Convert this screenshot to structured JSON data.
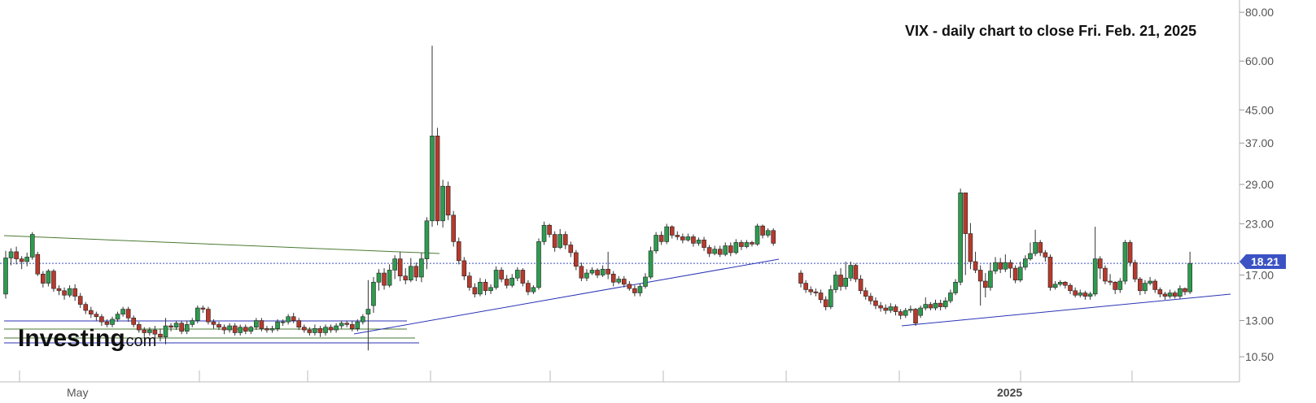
{
  "chart_data": {
    "type": "candlestick",
    "title": "VIX - daily chart to close Fri. Feb. 21, 2025",
    "yscale": "log",
    "ylim": [
      9.5,
      82
    ],
    "yticks": [
      "80.00",
      "60.00",
      "45.00",
      "37.00",
      "29.00",
      "23.00",
      "18.21",
      "17.00",
      "13.00",
      "10.50"
    ],
    "last_value": "18.21",
    "xlabels": [
      "May",
      "2025"
    ],
    "colors": {
      "up": "#2e9b4f",
      "down": "#b63a2c",
      "wick": "#333333",
      "last_line": "#3b52c4",
      "trend_blue": "#2b33b5",
      "trend_green": "#4a7a34",
      "grid": "#dddddd"
    },
    "candles": [
      [
        15.2,
        18.8,
        14.8,
        19.6
      ],
      [
        18.8,
        19.5,
        18.0,
        19.9
      ],
      [
        19.5,
        18.7,
        18.1,
        20.1
      ],
      [
        18.7,
        18.4,
        17.6,
        19.0
      ],
      [
        18.4,
        18.9,
        17.9,
        19.4
      ],
      [
        18.9,
        21.6,
        18.6,
        21.9
      ],
      [
        19.2,
        17.1,
        16.9,
        19.5
      ],
      [
        17.1,
        16.2,
        15.8,
        17.4
      ],
      [
        16.2,
        17.4,
        15.9,
        17.6
      ],
      [
        17.4,
        15.7,
        15.4,
        17.6
      ],
      [
        15.7,
        15.5,
        15.1,
        16.0
      ],
      [
        15.5,
        15.1,
        14.7,
        15.8
      ],
      [
        15.1,
        15.7,
        14.9,
        16.0
      ],
      [
        15.7,
        15.0,
        14.6,
        16.1
      ],
      [
        15.0,
        14.3,
        14.0,
        15.3
      ],
      [
        14.3,
        13.8,
        13.5,
        14.5
      ],
      [
        13.8,
        13.5,
        13.2,
        14.1
      ],
      [
        13.5,
        13.3,
        13.0,
        13.7
      ],
      [
        13.3,
        12.9,
        12.6,
        13.5
      ],
      [
        12.9,
        12.7,
        12.5,
        13.1
      ],
      [
        12.7,
        13.1,
        12.5,
        13.3
      ],
      [
        13.1,
        13.5,
        12.9,
        13.7
      ],
      [
        13.5,
        13.9,
        13.3,
        14.1
      ],
      [
        13.9,
        13.2,
        12.9,
        14.1
      ],
      [
        13.2,
        12.7,
        12.5,
        13.4
      ],
      [
        12.7,
        12.3,
        12.1,
        12.9
      ],
      [
        12.3,
        12.1,
        11.8,
        12.5
      ],
      [
        12.1,
        12.3,
        11.9,
        12.5
      ],
      [
        12.3,
        12.0,
        11.7,
        12.6
      ],
      [
        12.0,
        11.8,
        11.5,
        12.4
      ],
      [
        11.8,
        12.6,
        11.3,
        13.2
      ],
      [
        12.6,
        12.5,
        12.2,
        12.8
      ],
      [
        12.5,
        12.8,
        12.3,
        13.0
      ],
      [
        12.8,
        12.2,
        12.0,
        13.0
      ],
      [
        12.2,
        12.7,
        12.0,
        13.0
      ],
      [
        12.7,
        13.0,
        12.5,
        13.2
      ],
      [
        13.0,
        14.0,
        12.8,
        14.2
      ],
      [
        14.0,
        13.9,
        13.6,
        14.2
      ],
      [
        13.9,
        12.9,
        12.7,
        14.1
      ],
      [
        12.9,
        12.7,
        12.4,
        13.1
      ],
      [
        12.7,
        12.5,
        12.3,
        12.9
      ],
      [
        12.5,
        12.3,
        12.0,
        12.7
      ],
      [
        12.3,
        12.6,
        12.1,
        12.8
      ],
      [
        12.6,
        12.1,
        11.9,
        12.8
      ],
      [
        12.1,
        12.5,
        11.9,
        12.7
      ],
      [
        12.5,
        12.2,
        12.0,
        12.7
      ],
      [
        12.2,
        12.5,
        12.0,
        12.6
      ],
      [
        12.5,
        13.0,
        12.3,
        13.2
      ],
      [
        13.0,
        12.4,
        12.2,
        13.2
      ],
      [
        12.4,
        12.3,
        12.1,
        12.6
      ],
      [
        12.3,
        12.4,
        12.1,
        12.6
      ],
      [
        12.4,
        12.9,
        12.2,
        13.1
      ],
      [
        12.9,
        12.9,
        12.6,
        13.1
      ],
      [
        12.9,
        13.3,
        12.7,
        13.5
      ],
      [
        13.3,
        13.0,
        12.8,
        13.6
      ],
      [
        13.0,
        12.5,
        12.3,
        13.2
      ],
      [
        12.5,
        12.3,
        12.1,
        12.7
      ],
      [
        12.3,
        12.1,
        11.9,
        12.5
      ],
      [
        12.1,
        12.4,
        11.9,
        12.7
      ],
      [
        12.4,
        12.1,
        11.8,
        12.6
      ],
      [
        12.1,
        12.5,
        11.9,
        12.7
      ],
      [
        12.5,
        12.3,
        12.1,
        12.7
      ],
      [
        12.3,
        12.6,
        12.1,
        12.8
      ],
      [
        12.6,
        12.8,
        12.4,
        13.0
      ],
      [
        12.8,
        12.7,
        12.5,
        13.0
      ],
      [
        12.7,
        12.4,
        12.2,
        13.0
      ],
      [
        12.4,
        12.9,
        12.2,
        13.1
      ],
      [
        12.9,
        13.3,
        12.7,
        13.5
      ],
      [
        13.5,
        13.9,
        10.9,
        16.5
      ],
      [
        14.2,
        16.3,
        13.6,
        16.8
      ],
      [
        16.3,
        17.2,
        15.5,
        17.6
      ],
      [
        17.2,
        16.0,
        15.6,
        17.7
      ],
      [
        16.0,
        17.5,
        15.8,
        18.1
      ],
      [
        17.5,
        18.7,
        16.6,
        19.1
      ],
      [
        18.7,
        16.9,
        16.4,
        19.5
      ],
      [
        16.9,
        16.5,
        16.1,
        17.7
      ],
      [
        16.5,
        17.9,
        16.3,
        18.8
      ],
      [
        17.9,
        16.8,
        16.4,
        18.3
      ],
      [
        16.8,
        18.7,
        16.3,
        19.4
      ],
      [
        18.7,
        23.4,
        17.6,
        23.9
      ],
      [
        23.4,
        38.6,
        22.6,
        65.7
      ],
      [
        38.6,
        23.4,
        22.8,
        40.5
      ],
      [
        23.4,
        28.7,
        22.5,
        29.8
      ],
      [
        28.7,
        24.2,
        23.5,
        29.5
      ],
      [
        24.2,
        20.7,
        20.1,
        24.8
      ],
      [
        20.7,
        18.5,
        18.1,
        21.2
      ],
      [
        18.5,
        16.9,
        16.5,
        18.9
      ],
      [
        16.9,
        15.8,
        15.5,
        17.3
      ],
      [
        15.8,
        15.2,
        14.9,
        16.2
      ],
      [
        15.2,
        16.3,
        15.0,
        16.7
      ],
      [
        16.3,
        15.5,
        15.1,
        16.6
      ],
      [
        15.5,
        15.8,
        15.2,
        16.1
      ],
      [
        15.8,
        17.5,
        15.6,
        17.9
      ],
      [
        17.5,
        16.6,
        16.3,
        17.8
      ],
      [
        16.6,
        16.0,
        15.7,
        17.0
      ],
      [
        16.0,
        16.7,
        15.8,
        17.1
      ],
      [
        16.7,
        17.5,
        16.4,
        17.8
      ],
      [
        17.5,
        16.2,
        15.9,
        17.7
      ],
      [
        16.2,
        15.4,
        15.1,
        16.5
      ],
      [
        15.4,
        15.8,
        15.2,
        16.0
      ],
      [
        15.8,
        20.7,
        15.6,
        21.1
      ],
      [
        20.7,
        22.8,
        20.3,
        23.3
      ],
      [
        22.8,
        21.6,
        21.2,
        23.0
      ],
      [
        21.6,
        20.0,
        19.5,
        22.0
      ],
      [
        20.0,
        21.6,
        19.8,
        22.3
      ],
      [
        21.6,
        20.3,
        19.8,
        22.0
      ],
      [
        20.3,
        19.4,
        18.9,
        20.7
      ],
      [
        19.4,
        17.9,
        17.5,
        19.7
      ],
      [
        17.9,
        16.7,
        16.4,
        18.3
      ],
      [
        16.7,
        17.2,
        16.4,
        17.6
      ],
      [
        17.2,
        17.5,
        17.0,
        17.8
      ],
      [
        17.5,
        17.0,
        16.7,
        17.7
      ],
      [
        17.0,
        17.6,
        16.8,
        18.0
      ],
      [
        17.6,
        17.1,
        16.6,
        19.5
      ],
      [
        17.1,
        16.3,
        15.9,
        17.4
      ],
      [
        16.3,
        16.6,
        16.1,
        16.9
      ],
      [
        16.6,
        16.1,
        15.8,
        16.9
      ],
      [
        16.1,
        15.7,
        15.5,
        16.4
      ],
      [
        15.7,
        15.3,
        15.0,
        16.0
      ],
      [
        15.3,
        15.9,
        15.0,
        16.2
      ],
      [
        15.9,
        16.8,
        15.7,
        17.2
      ],
      [
        16.8,
        19.6,
        16.6,
        20.1
      ],
      [
        19.6,
        21.5,
        19.3,
        21.9
      ],
      [
        21.5,
        20.7,
        20.3,
        22.0
      ],
      [
        20.7,
        22.6,
        20.4,
        23.0
      ],
      [
        22.6,
        21.5,
        21.1,
        22.8
      ],
      [
        21.5,
        21.3,
        20.9,
        22.0
      ],
      [
        21.3,
        20.9,
        20.5,
        21.7
      ],
      [
        20.9,
        21.3,
        20.7,
        21.7
      ],
      [
        21.3,
        20.5,
        20.1,
        21.6
      ],
      [
        20.5,
        20.9,
        20.2,
        21.2
      ],
      [
        20.9,
        20.0,
        19.6,
        21.3
      ],
      [
        20.0,
        19.3,
        18.9,
        20.3
      ],
      [
        19.3,
        19.8,
        19.1,
        20.2
      ],
      [
        19.8,
        19.2,
        18.9,
        20.2
      ],
      [
        19.2,
        20.2,
        19.0,
        20.6
      ],
      [
        20.2,
        19.4,
        19.0,
        20.6
      ],
      [
        19.4,
        20.6,
        19.2,
        21.0
      ],
      [
        20.6,
        20.1,
        19.7,
        20.9
      ],
      [
        20.1,
        20.6,
        19.9,
        20.9
      ],
      [
        20.6,
        20.4,
        20.1,
        20.8
      ],
      [
        20.4,
        22.7,
        20.2,
        23.0
      ],
      [
        22.7,
        21.5,
        21.1,
        22.9
      ],
      [
        21.5,
        22.1,
        21.2,
        22.4
      ],
      [
        22.1,
        20.5,
        20.2,
        22.4
      ]
    ],
    "candles2": [
      [
        17.2,
        16.2,
        15.8,
        17.5
      ],
      [
        16.2,
        15.6,
        15.3,
        16.5
      ],
      [
        15.6,
        15.4,
        15.1,
        15.9
      ],
      [
        15.4,
        15.3,
        15.0,
        15.7
      ],
      [
        15.3,
        14.7,
        14.4,
        15.6
      ],
      [
        14.7,
        14.1,
        13.8,
        15.0
      ],
      [
        14.1,
        15.6,
        13.9,
        16.0
      ],
      [
        15.6,
        17.0,
        15.3,
        17.4
      ],
      [
        17.0,
        15.9,
        15.5,
        17.7
      ],
      [
        15.9,
        16.7,
        15.6,
        18.4
      ],
      [
        16.7,
        18.0,
        16.4,
        18.4
      ],
      [
        18.0,
        16.6,
        16.3,
        18.2
      ],
      [
        16.6,
        15.5,
        15.2,
        17.0
      ],
      [
        15.5,
        15.0,
        14.7,
        15.8
      ],
      [
        15.0,
        14.6,
        14.3,
        15.3
      ],
      [
        14.6,
        14.2,
        13.9,
        14.9
      ],
      [
        14.2,
        14.0,
        13.7,
        14.5
      ],
      [
        14.0,
        13.8,
        13.5,
        14.3
      ],
      [
        13.8,
        14.1,
        13.6,
        14.4
      ],
      [
        14.1,
        13.7,
        13.4,
        14.3
      ],
      [
        13.7,
        13.4,
        13.1,
        13.9
      ],
      [
        13.4,
        13.8,
        13.2,
        14.0
      ],
      [
        13.8,
        13.9,
        13.6,
        14.2
      ],
      [
        13.9,
        12.8,
        12.6,
        14.0
      ],
      [
        13.4,
        14.0,
        13.2,
        14.2
      ],
      [
        14.0,
        14.3,
        13.8,
        14.9
      ],
      [
        14.3,
        14.0,
        13.8,
        14.5
      ],
      [
        14.0,
        14.4,
        13.8,
        14.7
      ],
      [
        14.4,
        14.1,
        13.8,
        14.7
      ],
      [
        14.1,
        14.6,
        13.9,
        14.9
      ],
      [
        14.6,
        15.3,
        14.4,
        15.6
      ],
      [
        15.3,
        16.3,
        15.1,
        16.6
      ],
      [
        16.3,
        27.6,
        16.0,
        28.3
      ],
      [
        27.6,
        21.7,
        17.0,
        22.2
      ],
      [
        21.7,
        18.4,
        17.6,
        23.1
      ],
      [
        18.4,
        17.5,
        17.2,
        19.5
      ],
      [
        17.5,
        16.4,
        14.2,
        18.0
      ],
      [
        16.4,
        15.8,
        14.9,
        17.2
      ],
      [
        15.8,
        17.4,
        15.5,
        18.3
      ],
      [
        17.4,
        18.3,
        17.1,
        18.9
      ],
      [
        18.3,
        17.6,
        17.2,
        18.8
      ],
      [
        17.6,
        18.3,
        17.3,
        19.2
      ],
      [
        18.3,
        17.7,
        16.7,
        18.6
      ],
      [
        17.7,
        16.5,
        16.2,
        18.0
      ],
      [
        16.5,
        17.8,
        16.3,
        18.4
      ],
      [
        17.8,
        18.7,
        17.5,
        19.1
      ],
      [
        18.7,
        19.3,
        18.5,
        20.6
      ],
      [
        19.3,
        20.6,
        19.0,
        22.2
      ],
      [
        20.6,
        19.4,
        19.0,
        20.9
      ],
      [
        19.4,
        18.9,
        18.4,
        19.7
      ],
      [
        18.9,
        15.8,
        15.5,
        19.2
      ],
      [
        15.8,
        16.1,
        15.6,
        16.4
      ],
      [
        16.1,
        16.3,
        15.9,
        16.5
      ],
      [
        16.3,
        16.0,
        15.7,
        16.4
      ],
      [
        16.0,
        15.5,
        15.2,
        16.2
      ],
      [
        15.5,
        15.1,
        14.9,
        15.8
      ],
      [
        15.1,
        15.3,
        14.9,
        15.6
      ],
      [
        15.3,
        15.0,
        14.7,
        15.5
      ],
      [
        15.0,
        15.2,
        14.7,
        15.4
      ],
      [
        15.2,
        18.7,
        15.0,
        22.6
      ],
      [
        18.7,
        17.7,
        16.6,
        19.0
      ],
      [
        17.7,
        16.4,
        16.1,
        18.0
      ],
      [
        16.4,
        16.3,
        16.0,
        17.1
      ],
      [
        16.3,
        15.6,
        15.2,
        16.4
      ],
      [
        15.6,
        16.4,
        15.3,
        16.7
      ],
      [
        16.4,
        20.6,
        16.1,
        20.9
      ],
      [
        20.6,
        18.3,
        17.9,
        20.9
      ],
      [
        18.3,
        16.6,
        16.3,
        18.6
      ],
      [
        16.6,
        15.5,
        15.1,
        16.8
      ],
      [
        15.5,
        16.2,
        15.2,
        16.5
      ],
      [
        16.2,
        16.4,
        16.0,
        16.8
      ],
      [
        16.4,
        15.6,
        15.3,
        16.6
      ],
      [
        15.6,
        15.2,
        14.9,
        15.8
      ],
      [
        15.2,
        15.0,
        14.7,
        15.4
      ],
      [
        15.0,
        15.3,
        14.8,
        15.6
      ],
      [
        15.3,
        15.0,
        14.8,
        15.5
      ],
      [
        15.0,
        15.7,
        14.8,
        16.0
      ],
      [
        15.7,
        15.4,
        15.1,
        15.8
      ],
      [
        15.4,
        18.21,
        15.2,
        19.5
      ]
    ]
  },
  "branding": {
    "logo_text": "Investing",
    "logo_suffix": ".com"
  }
}
